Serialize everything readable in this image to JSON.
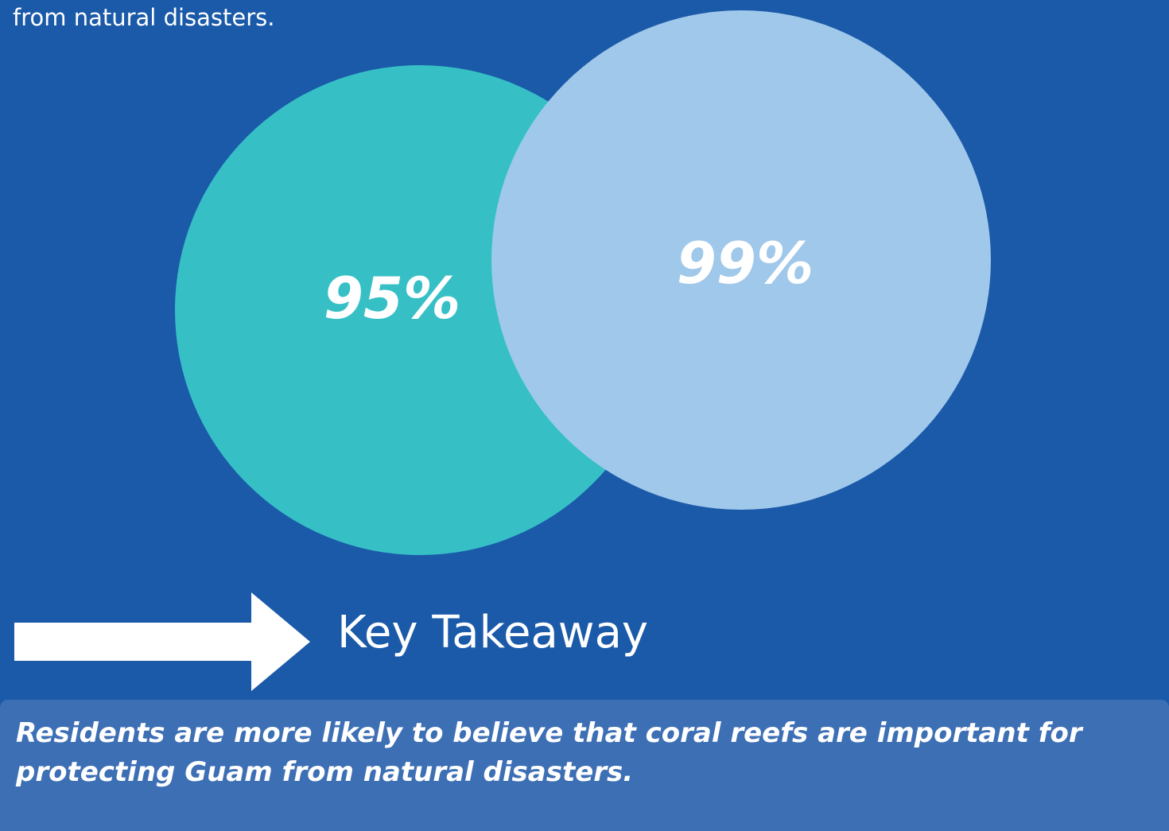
{
  "intro": {
    "text": "from natural disasters."
  },
  "chart_data": {
    "type": "bubble",
    "series": [
      {
        "value": 95,
        "label": "95%",
        "color": "#36c0c6"
      },
      {
        "value": 99,
        "label": "99%",
        "color": "#a0c8ea"
      }
    ]
  },
  "takeaway": {
    "heading": "Key Takeaway",
    "text": "Residents are more likely to believe that coral reefs are important for protecting Guam from natural disasters."
  },
  "colors": {
    "background": "#1b5aa9",
    "panel": "#3d6fb5",
    "arrow": "#ffffff",
    "text": "#ffffff"
  },
  "icons": {
    "arrow": "right-arrow-icon"
  }
}
